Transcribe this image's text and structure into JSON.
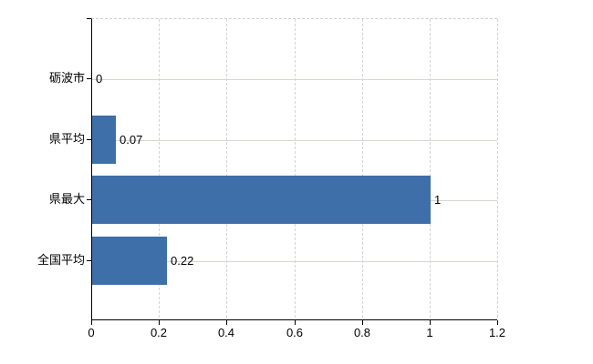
{
  "chart_data": {
    "type": "bar",
    "orientation": "horizontal",
    "title": "",
    "categories": [
      "砺波市",
      "県平均",
      "県最大",
      "全国平均"
    ],
    "values": [
      0,
      0.07,
      1,
      0.22
    ],
    "value_labels": [
      "0",
      "0.07",
      "1",
      "0.22"
    ],
    "xlim": [
      0,
      1.2
    ],
    "x_tick_values": [
      0,
      0.2,
      0.4,
      0.6,
      0.8,
      1,
      1.2
    ],
    "x_tick_labels": [
      "0",
      "0.2",
      "0.4",
      "0.6",
      "0.8",
      "1",
      "1.2"
    ],
    "grid": "on",
    "legend": "none",
    "colors": {
      "bar": "#3e6fa8",
      "grid_vertical": "#d6d2d6",
      "grid_horizontal": "#d3d9d1",
      "axis": "#000000",
      "text": "#000000",
      "background": "#ffffff"
    }
  }
}
